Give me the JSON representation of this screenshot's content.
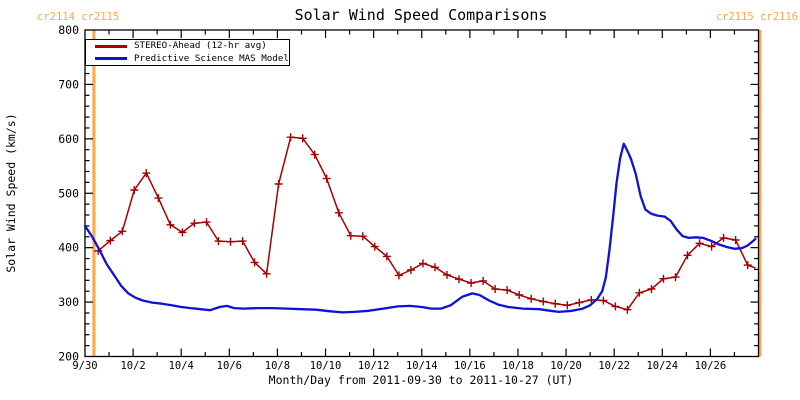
{
  "title": "Solar Wind Speed Comparisons",
  "cr_top_left": "cr2114 cr2115",
  "cr_top_right": "cr2115 cr2116",
  "colors": {
    "background": "#ffffff",
    "axis": "#000000",
    "stereo_red": "#a40000",
    "mas_blue": "#1010d8",
    "carrington_orange": "#ffa64d"
  },
  "chart_data": {
    "type": "line",
    "title": "Solar Wind Speed Comparisons",
    "xlabel": "Month/Day from 2011-09-30 to 2011-10-27 (UT)",
    "ylabel": "Solar Wind Speed (km/s)",
    "ylim": [
      200,
      800
    ],
    "y_major_step": 100,
    "y_minor_step": 20,
    "y_tick_values": [
      200,
      300,
      400,
      500,
      600,
      700,
      800
    ],
    "x_span_days": 28,
    "x_minor_step_days": 1,
    "x_major_step_days": 2,
    "x_start_date": "2011-09-30",
    "x_ticks": [
      {
        "day": 0,
        "label": "9/30"
      },
      {
        "day": 2,
        "label": "10/2"
      },
      {
        "day": 4,
        "label": "10/4"
      },
      {
        "day": 6,
        "label": "10/6"
      },
      {
        "day": 8,
        "label": "10/8"
      },
      {
        "day": 10,
        "label": "10/10"
      },
      {
        "day": 12,
        "label": "10/12"
      },
      {
        "day": 14,
        "label": "10/14"
      },
      {
        "day": 16,
        "label": "10/16"
      },
      {
        "day": 18,
        "label": "10/18"
      },
      {
        "day": 20,
        "label": "10/20"
      },
      {
        "day": 22,
        "label": "10/22"
      },
      {
        "day": 24,
        "label": "10/24"
      },
      {
        "day": 26,
        "label": "10/26"
      }
    ],
    "grid": false,
    "legend": {
      "position": "top-left",
      "entries": [
        {
          "label": "STEREO-Ahead (12-hr avg)",
          "color": "#a40000"
        },
        {
          "label": "Predictive Science MAS Model",
          "color": "#1010d8"
        }
      ]
    },
    "carrington_lines": [
      {
        "day": 0.37,
        "label": "cr2114 cr2115",
        "position": "left"
      },
      {
        "day": 28.06,
        "label": "cr2115 cr2116",
        "position": "right"
      }
    ],
    "series": [
      {
        "name": "STEREO-Ahead (12-hr avg)",
        "color": "#a40000",
        "marker": "plus",
        "line_width": 1.5,
        "points": [
          [
            0.55,
            394
          ],
          [
            1.05,
            413
          ],
          [
            1.55,
            430
          ],
          [
            2.05,
            506
          ],
          [
            2.55,
            537
          ],
          [
            3.05,
            491
          ],
          [
            3.55,
            442
          ],
          [
            4.05,
            428
          ],
          [
            4.55,
            445
          ],
          [
            5.05,
            447
          ],
          [
            5.55,
            412
          ],
          [
            6.05,
            411
          ],
          [
            6.55,
            412
          ],
          [
            7.05,
            373
          ],
          [
            7.55,
            352
          ],
          [
            8.05,
            517
          ],
          [
            8.55,
            603
          ],
          [
            9.05,
            601
          ],
          [
            9.55,
            571
          ],
          [
            10.05,
            527
          ],
          [
            10.55,
            464
          ],
          [
            11.05,
            422
          ],
          [
            11.55,
            421
          ],
          [
            12.05,
            402
          ],
          [
            12.55,
            384
          ],
          [
            13.05,
            349
          ],
          [
            13.55,
            359
          ],
          [
            14.05,
            371
          ],
          [
            14.55,
            364
          ],
          [
            15.05,
            350
          ],
          [
            15.55,
            342
          ],
          [
            16.05,
            335
          ],
          [
            16.55,
            339
          ],
          [
            17.05,
            324
          ],
          [
            17.55,
            322
          ],
          [
            18.05,
            313
          ],
          [
            18.55,
            306
          ],
          [
            19.05,
            301
          ],
          [
            19.55,
            297
          ],
          [
            20.05,
            294
          ],
          [
            20.55,
            299
          ],
          [
            21.05,
            304
          ],
          [
            21.55,
            303
          ],
          [
            22.05,
            292
          ],
          [
            22.55,
            286
          ],
          [
            23.05,
            317
          ],
          [
            23.55,
            324
          ],
          [
            24.05,
            343
          ],
          [
            24.55,
            346
          ],
          [
            25.05,
            386
          ],
          [
            25.55,
            408
          ],
          [
            26.05,
            402
          ],
          [
            26.55,
            418
          ],
          [
            27.05,
            414
          ],
          [
            27.55,
            368
          ]
        ],
        "tail": [
          27.85,
          363
        ]
      },
      {
        "name": "Predictive Science MAS Model",
        "color": "#1010d8",
        "marker": "none",
        "line_width": 2.3,
        "points": [
          [
            0,
            440
          ],
          [
            0.3,
            420
          ],
          [
            0.6,
            396
          ],
          [
            0.9,
            370
          ],
          [
            1.2,
            350
          ],
          [
            1.5,
            330
          ],
          [
            1.8,
            316
          ],
          [
            2.1,
            308
          ],
          [
            2.4,
            303
          ],
          [
            2.8,
            299
          ],
          [
            3.2,
            297
          ],
          [
            3.6,
            294
          ],
          [
            4.0,
            291
          ],
          [
            4.4,
            289
          ],
          [
            4.8,
            287
          ],
          [
            5.2,
            285
          ],
          [
            5.6,
            291
          ],
          [
            5.9,
            293
          ],
          [
            6.2,
            289
          ],
          [
            6.6,
            288
          ],
          [
            7.2,
            289
          ],
          [
            7.8,
            289
          ],
          [
            8.4,
            288
          ],
          [
            9.0,
            287
          ],
          [
            9.6,
            286
          ],
          [
            10.2,
            283
          ],
          [
            10.7,
            281
          ],
          [
            11.2,
            282
          ],
          [
            11.8,
            284
          ],
          [
            12.4,
            288
          ],
          [
            13.0,
            292
          ],
          [
            13.5,
            293
          ],
          [
            14.0,
            291
          ],
          [
            14.4,
            288
          ],
          [
            14.8,
            288
          ],
          [
            15.2,
            294
          ],
          [
            15.7,
            310
          ],
          [
            16.1,
            316
          ],
          [
            16.4,
            313
          ],
          [
            16.8,
            303
          ],
          [
            17.2,
            295
          ],
          [
            17.6,
            291
          ],
          [
            18.2,
            288
          ],
          [
            18.9,
            287
          ],
          [
            19.35,
            284
          ],
          [
            19.7,
            282
          ],
          [
            20.25,
            284
          ],
          [
            20.7,
            288
          ],
          [
            21.0,
            294
          ],
          [
            21.3,
            306
          ],
          [
            21.5,
            320
          ],
          [
            21.65,
            345
          ],
          [
            21.8,
            395
          ],
          [
            21.95,
            455
          ],
          [
            22.1,
            520
          ],
          [
            22.25,
            565
          ],
          [
            22.4,
            591
          ],
          [
            22.55,
            578
          ],
          [
            22.7,
            563
          ],
          [
            22.9,
            535
          ],
          [
            23.1,
            495
          ],
          [
            23.3,
            470
          ],
          [
            23.55,
            462
          ],
          [
            23.8,
            459
          ],
          [
            24.1,
            457
          ],
          [
            24.35,
            449
          ],
          [
            24.6,
            433
          ],
          [
            24.85,
            421
          ],
          [
            25.1,
            418
          ],
          [
            25.4,
            419
          ],
          [
            25.7,
            418
          ],
          [
            26.0,
            413
          ],
          [
            26.35,
            406
          ],
          [
            26.7,
            401
          ],
          [
            27.0,
            398
          ],
          [
            27.3,
            399
          ],
          [
            27.55,
            404
          ],
          [
            27.87,
            416
          ]
        ]
      }
    ]
  }
}
